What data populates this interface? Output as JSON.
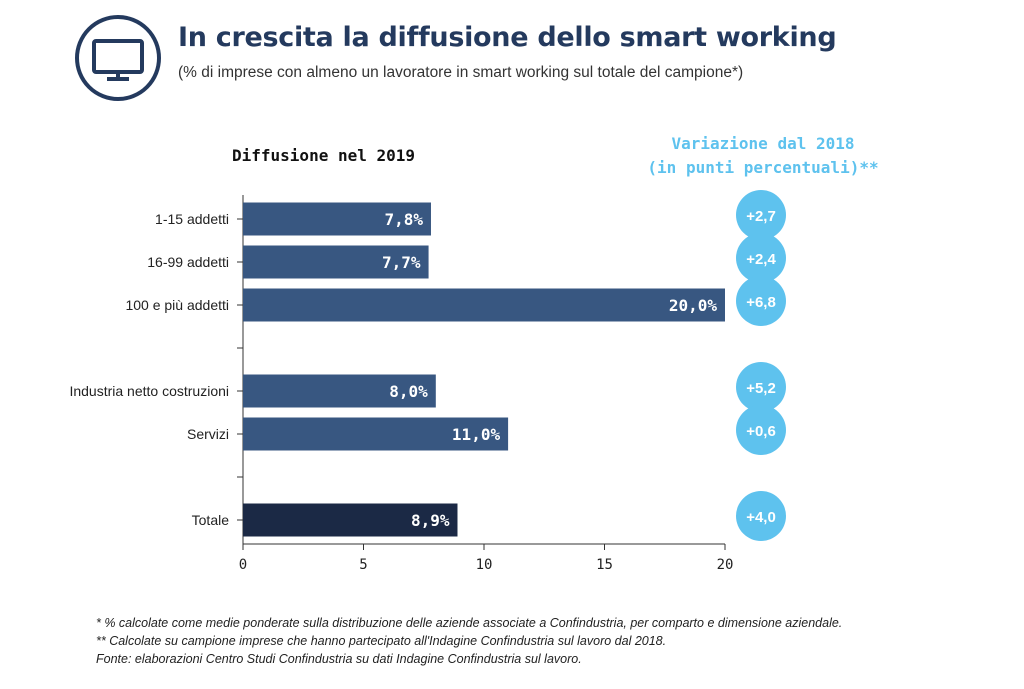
{
  "header": {
    "icon": "tv-monitor-icon",
    "title": "In crescita la diffusione dello smart working",
    "subtitle": "(% di imprese con almeno un lavoratore in smart working sul totale del campione*)"
  },
  "colors": {
    "bar": "#385781",
    "bar_total": "#1b2945",
    "bubble": "#5ec2ee",
    "title": "#243a5e"
  },
  "chart_data": {
    "type": "bar",
    "orientation": "horizontal",
    "title": "Diffusione nel 2019",
    "categories": [
      "1-15 addetti",
      "16-99 addetti",
      "100 e più addetti",
      "Industria netto costruzioni",
      "Servizi",
      "Totale"
    ],
    "values": [
      7.8,
      7.7,
      20.0,
      8.0,
      11.0,
      8.9
    ],
    "value_labels": [
      "7,8%",
      "7,7%",
      "20,0%",
      "8,0%",
      "11,0%",
      "8,9%"
    ],
    "xlim": [
      0,
      20
    ],
    "xticks": [
      "0",
      "5",
      "10",
      "15",
      "20"
    ],
    "grid": false,
    "variation": {
      "title_line1": "Variazione dal 2018",
      "title_line2": "(in punti percentuali)**",
      "values": [
        2.7,
        2.4,
        6.8,
        5.2,
        0.6,
        4.0
      ],
      "labels": [
        "+2,7",
        "+2,4",
        "+6,8",
        "+5,2",
        "+0,6",
        "+4,0"
      ]
    }
  },
  "footnotes": {
    "line1": "* % calcolate come medie ponderate sulla distribuzione delle aziende associate a Confindustria, per comparto e dimensione aziendale.",
    "line2": "** Calcolate su campione imprese che hanno partecipato all'Indagine Confindustria sul lavoro dal 2018.",
    "line3": "Fonte: elaborazioni Centro Studi Confindustria su dati Indagine Confindustria sul lavoro."
  }
}
